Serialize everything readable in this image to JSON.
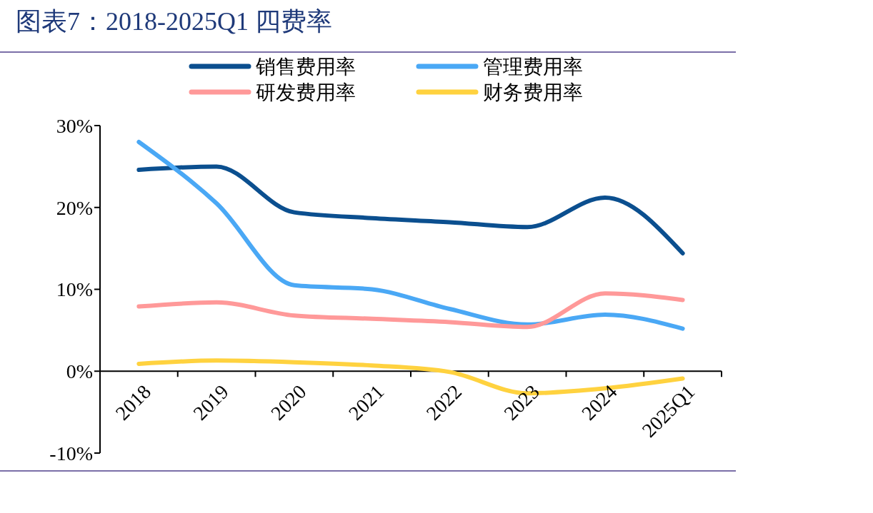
{
  "chart_data": {
    "type": "line",
    "title": "图表7：2018-2025Q1 四费率",
    "categories": [
      "2018",
      "2019",
      "2020",
      "2021",
      "2022",
      "2023",
      "2024",
      "2025Q1"
    ],
    "series": [
      {
        "name": "销售费用率",
        "color": "#0b4f8f",
        "values": [
          24.6,
          25.0,
          19.4,
          18.7,
          18.2,
          17.6,
          21.2,
          14.4
        ]
      },
      {
        "name": "管理费用率",
        "color": "#4aa8f5",
        "values": [
          28.0,
          20.5,
          10.5,
          10.0,
          7.6,
          5.7,
          6.9,
          5.2
        ]
      },
      {
        "name": "研发费用率",
        "color": "#ff9999",
        "values": [
          7.9,
          8.4,
          6.8,
          6.4,
          6.0,
          5.4,
          9.5,
          8.7
        ]
      },
      {
        "name": "财务费用率",
        "color": "#ffd23f",
        "values": [
          0.9,
          1.3,
          1.1,
          0.7,
          -0.1,
          -2.7,
          -2.1,
          -0.9
        ]
      }
    ],
    "ylim": [
      -10,
      30
    ],
    "yticks": [
      {
        "value": -10,
        "label": "-10%"
      },
      {
        "value": 0,
        "label": "0%"
      },
      {
        "value": 10,
        "label": "10%"
      },
      {
        "value": 20,
        "label": "20%"
      },
      {
        "value": 30,
        "label": "30%"
      }
    ],
    "grid": false,
    "legend": "top",
    "marker": "none",
    "line_style": "solid"
  }
}
